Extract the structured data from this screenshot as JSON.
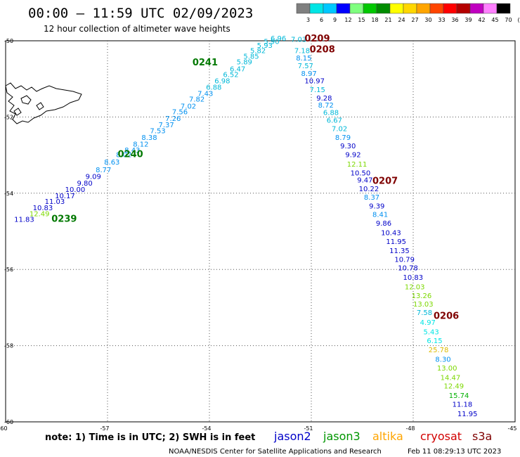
{
  "header": {
    "title": "00:00 – 11:59 UTC 02/09/2023",
    "subtitle": "12 hour collection of altimeter wave heights"
  },
  "color_scale": {
    "labels": [
      "3",
      "6",
      "9",
      "12",
      "15",
      "18",
      "21",
      "24",
      "27",
      "30",
      "33",
      "36",
      "39",
      "42",
      "45",
      "70",
      "(ft)"
    ],
    "colors": [
      "#7f7f7f",
      "#00e5e5",
      "#00c8ff",
      "#0000ff",
      "#7fff7f",
      "#00c800",
      "#008c00",
      "#ffff00",
      "#ffd700",
      "#ffa500",
      "#ff4500",
      "#ff0000",
      "#b40000",
      "#c000c0",
      "#ff80ff",
      "#000000"
    ]
  },
  "footer": {
    "note": "note:  1) Time is in UTC;  2) SWH is in feet",
    "credit": "NOAA/NESDIS Center for Satellite Applications and Research",
    "timestamp": "Feb 11 08:29:13 UTC 2023"
  },
  "legend": [
    {
      "name": "jason2",
      "color": "#0000c8"
    },
    {
      "name": "jason3",
      "color": "#009600"
    },
    {
      "name": "altika",
      "color": "#ffa500"
    },
    {
      "name": "cryosat",
      "color": "#d20000"
    },
    {
      "name": "s3a",
      "color": "#7f0000"
    }
  ],
  "chart_data": {
    "type": "scatter",
    "title": "12 hour collection of altimeter wave heights",
    "x_ticks": [
      "-60",
      "-57",
      "-54",
      "-51",
      "-48",
      "-45"
    ],
    "y_ticks": [
      "-50",
      "-52",
      "-54",
      "-56",
      "-58",
      "-60"
    ],
    "xlim": [
      -60,
      -45
    ],
    "ylim": [
      -60,
      -50
    ],
    "grid": true,
    "units": "ft",
    "tracks": [
      {
        "passes": [
          {
            "label": "0239",
            "lon": -58.65,
            "lat": -54.75
          },
          {
            "label": "0240",
            "lon": -56.7,
            "lat": -53.05
          },
          {
            "label": "0241",
            "lon": -54.5,
            "lat": -50.65
          }
        ],
        "points": [
          {
            "text": "11.83",
            "lon": -59.75,
            "lat": -54.75,
            "color": "#0000c8"
          },
          {
            "text": "12.49",
            "lon": -59.3,
            "lat": -54.6,
            "color": "#7cd800"
          },
          {
            "text": "10.83",
            "lon": -59.2,
            "lat": -54.45,
            "color": "#0000c8"
          },
          {
            "text": "11.03",
            "lon": -58.85,
            "lat": -54.28,
            "color": "#0000c8"
          },
          {
            "text": "10.17",
            "lon": -58.55,
            "lat": -54.13,
            "color": "#0000c8"
          },
          {
            "text": "10.00",
            "lon": -58.25,
            "lat": -53.97,
            "color": "#0000c8"
          },
          {
            "text": "9.80",
            "lon": -57.9,
            "lat": -53.8,
            "color": "#0000c8"
          },
          {
            "text": "9.09",
            "lon": -57.65,
            "lat": -53.63,
            "color": "#0000c8"
          },
          {
            "text": "8.77",
            "lon": -57.35,
            "lat": -53.45,
            "color": "#0090f0"
          },
          {
            "text": "8.63",
            "lon": -57.1,
            "lat": -53.25,
            "color": "#0090f0"
          },
          {
            "text": "8.02",
            "lon": -56.75,
            "lat": -53.05,
            "color": "#0090f0"
          },
          {
            "text": "8.43",
            "lon": -56.5,
            "lat": -52.93,
            "color": "#0090f0"
          },
          {
            "text": "8.12",
            "lon": -56.25,
            "lat": -52.78,
            "color": "#0090f0"
          },
          {
            "text": "8.38",
            "lon": -56.0,
            "lat": -52.6,
            "color": "#0090f0"
          },
          {
            "text": "7.53",
            "lon": -55.75,
            "lat": -52.43,
            "color": "#0090f0"
          },
          {
            "text": "7.37",
            "lon": -55.5,
            "lat": -52.27,
            "color": "#0090f0"
          },
          {
            "text": "7.26",
            "lon": -55.3,
            "lat": -52.1,
            "color": "#0090f0"
          },
          {
            "text": "7.56",
            "lon": -55.1,
            "lat": -51.93,
            "color": "#0090f0"
          },
          {
            "text": "7.02",
            "lon": -54.85,
            "lat": -51.78,
            "color": "#0090f0"
          },
          {
            "text": "7.82",
            "lon": -54.6,
            "lat": -51.6,
            "color": "#0090f0"
          },
          {
            "text": "7.43",
            "lon": -54.35,
            "lat": -51.45,
            "color": "#0090f0"
          },
          {
            "text": "6.88",
            "lon": -54.1,
            "lat": -51.28,
            "color": "#00b8d8"
          },
          {
            "text": "6.98",
            "lon": -53.85,
            "lat": -51.12,
            "color": "#00b8d8"
          },
          {
            "text": "6.52",
            "lon": -53.6,
            "lat": -50.95,
            "color": "#00b8d8"
          },
          {
            "text": "6.47",
            "lon": -53.4,
            "lat": -50.8,
            "color": "#00b8d8"
          },
          {
            "text": "5.89",
            "lon": -53.2,
            "lat": -50.62,
            "color": "#00b8d8"
          },
          {
            "text": "5.85",
            "lon": -53.0,
            "lat": -50.47,
            "color": "#00b8d8"
          },
          {
            "text": "5.82",
            "lon": -52.8,
            "lat": -50.32,
            "color": "#00b8d8"
          },
          {
            "text": "5.93",
            "lon": -52.6,
            "lat": -50.18,
            "color": "#00b8d8"
          },
          {
            "text": "5.90",
            "lon": -52.4,
            "lat": -50.08,
            "color": "#00b8d8"
          },
          {
            "text": "6.96",
            "lon": -52.2,
            "lat": -50.0,
            "color": "#00b8d8"
          }
        ]
      },
      {
        "passes": [
          {
            "label": "0209",
            "lon": -51.2,
            "lat": -50.02
          },
          {
            "label": "0208",
            "lon": -51.05,
            "lat": -50.3
          },
          {
            "label": "0207",
            "lon": -49.2,
            "lat": -53.75
          },
          {
            "label": "0206",
            "lon": -47.4,
            "lat": -57.3
          }
        ],
        "points": [
          {
            "text": "7.03",
            "lon": -51.6,
            "lat": -50.03,
            "color": "#00b8d8"
          },
          {
            "text": "7.18",
            "lon": -51.5,
            "lat": -50.32,
            "color": "#00b8d8"
          },
          {
            "text": "8.15",
            "lon": -51.45,
            "lat": -50.52,
            "color": "#0090f0"
          },
          {
            "text": "7.57",
            "lon": -51.4,
            "lat": -50.72,
            "color": "#00b8d8"
          },
          {
            "text": "8.97",
            "lon": -51.3,
            "lat": -50.92,
            "color": "#0090f0"
          },
          {
            "text": "10.97",
            "lon": -51.2,
            "lat": -51.12,
            "color": "#0000c8"
          },
          {
            "text": "7.15",
            "lon": -51.05,
            "lat": -51.35,
            "color": "#00b8d8"
          },
          {
            "text": "9.28",
            "lon": -50.85,
            "lat": -51.57,
            "color": "#0000c8"
          },
          {
            "text": "8.72",
            "lon": -50.8,
            "lat": -51.75,
            "color": "#0090f0"
          },
          {
            "text": "6.88",
            "lon": -50.65,
            "lat": -51.95,
            "color": "#00b8d8"
          },
          {
            "text": "6.67",
            "lon": -50.55,
            "lat": -52.15,
            "color": "#00b8d8"
          },
          {
            "text": "7.02",
            "lon": -50.4,
            "lat": -52.37,
            "color": "#00b8d8"
          },
          {
            "text": "8.79",
            "lon": -50.3,
            "lat": -52.6,
            "color": "#0090f0"
          },
          {
            "text": "9.30",
            "lon": -50.15,
            "lat": -52.82,
            "color": "#0000c8"
          },
          {
            "text": "9.92",
            "lon": -50.0,
            "lat": -53.05,
            "color": "#0000c8"
          },
          {
            "text": "12.11",
            "lon": -49.95,
            "lat": -53.3,
            "color": "#7cd800"
          },
          {
            "text": "10.50",
            "lon": -49.85,
            "lat": -53.53,
            "color": "#0000c8"
          },
          {
            "text": "9.47",
            "lon": -49.65,
            "lat": -53.72,
            "color": "#0000c8"
          },
          {
            "text": "10.22",
            "lon": -49.6,
            "lat": -53.95,
            "color": "#0000c8"
          },
          {
            "text": "8.37",
            "lon": -49.45,
            "lat": -54.17,
            "color": "#0090f0"
          },
          {
            "text": "9.39",
            "lon": -49.3,
            "lat": -54.4,
            "color": "#0000c8"
          },
          {
            "text": "8.41",
            "lon": -49.2,
            "lat": -54.62,
            "color": "#0090f0"
          },
          {
            "text": "9.86",
            "lon": -49.1,
            "lat": -54.85,
            "color": "#0000c8"
          },
          {
            "text": "10.43",
            "lon": -48.95,
            "lat": -55.1,
            "color": "#0000c8"
          },
          {
            "text": "11.95",
            "lon": -48.8,
            "lat": -55.33,
            "color": "#0000c8"
          },
          {
            "text": "11.35",
            "lon": -48.7,
            "lat": -55.57,
            "color": "#0000c8"
          },
          {
            "text": "10.79",
            "lon": -48.55,
            "lat": -55.8,
            "color": "#0000c8"
          },
          {
            "text": "10.78",
            "lon": -48.45,
            "lat": -56.02,
            "color": "#0000c8"
          },
          {
            "text": "10.83",
            "lon": -48.3,
            "lat": -56.27,
            "color": "#0000c8"
          },
          {
            "text": "12.03",
            "lon": -48.25,
            "lat": -56.52,
            "color": "#7cd800"
          },
          {
            "text": "13.26",
            "lon": -48.05,
            "lat": -56.75,
            "color": "#7cd800"
          },
          {
            "text": "13.03",
            "lon": -48.0,
            "lat": -56.97,
            "color": "#7cd800"
          },
          {
            "text": "7.58",
            "lon": -47.9,
            "lat": -57.2,
            "color": "#00b8d8"
          },
          {
            "text": "4.97",
            "lon": -47.8,
            "lat": -57.45,
            "color": "#00e5e5"
          },
          {
            "text": "5.43",
            "lon": -47.7,
            "lat": -57.7,
            "color": "#00e5e5"
          },
          {
            "text": "6.15",
            "lon": -47.6,
            "lat": -57.93,
            "color": "#00e5e5"
          },
          {
            "text": "25.78",
            "lon": -47.55,
            "lat": -58.17,
            "color": "#ddbb00"
          },
          {
            "text": "8.30",
            "lon": -47.35,
            "lat": -58.42,
            "color": "#0090f0"
          },
          {
            "text": "13.00",
            "lon": -47.3,
            "lat": -58.65,
            "color": "#7cd800"
          },
          {
            "text": "14.47",
            "lon": -47.2,
            "lat": -58.9,
            "color": "#7cd800"
          },
          {
            "text": "12.49",
            "lon": -47.1,
            "lat": -59.12,
            "color": "#7cd800"
          },
          {
            "text": "15.74",
            "lon": -46.95,
            "lat": -59.37,
            "color": "#00b000"
          },
          {
            "text": "11.18",
            "lon": -46.85,
            "lat": -59.6,
            "color": "#0000c8"
          },
          {
            "text": "11.95",
            "lon": -46.7,
            "lat": -59.85,
            "color": "#0000c8"
          }
        ]
      }
    ]
  }
}
